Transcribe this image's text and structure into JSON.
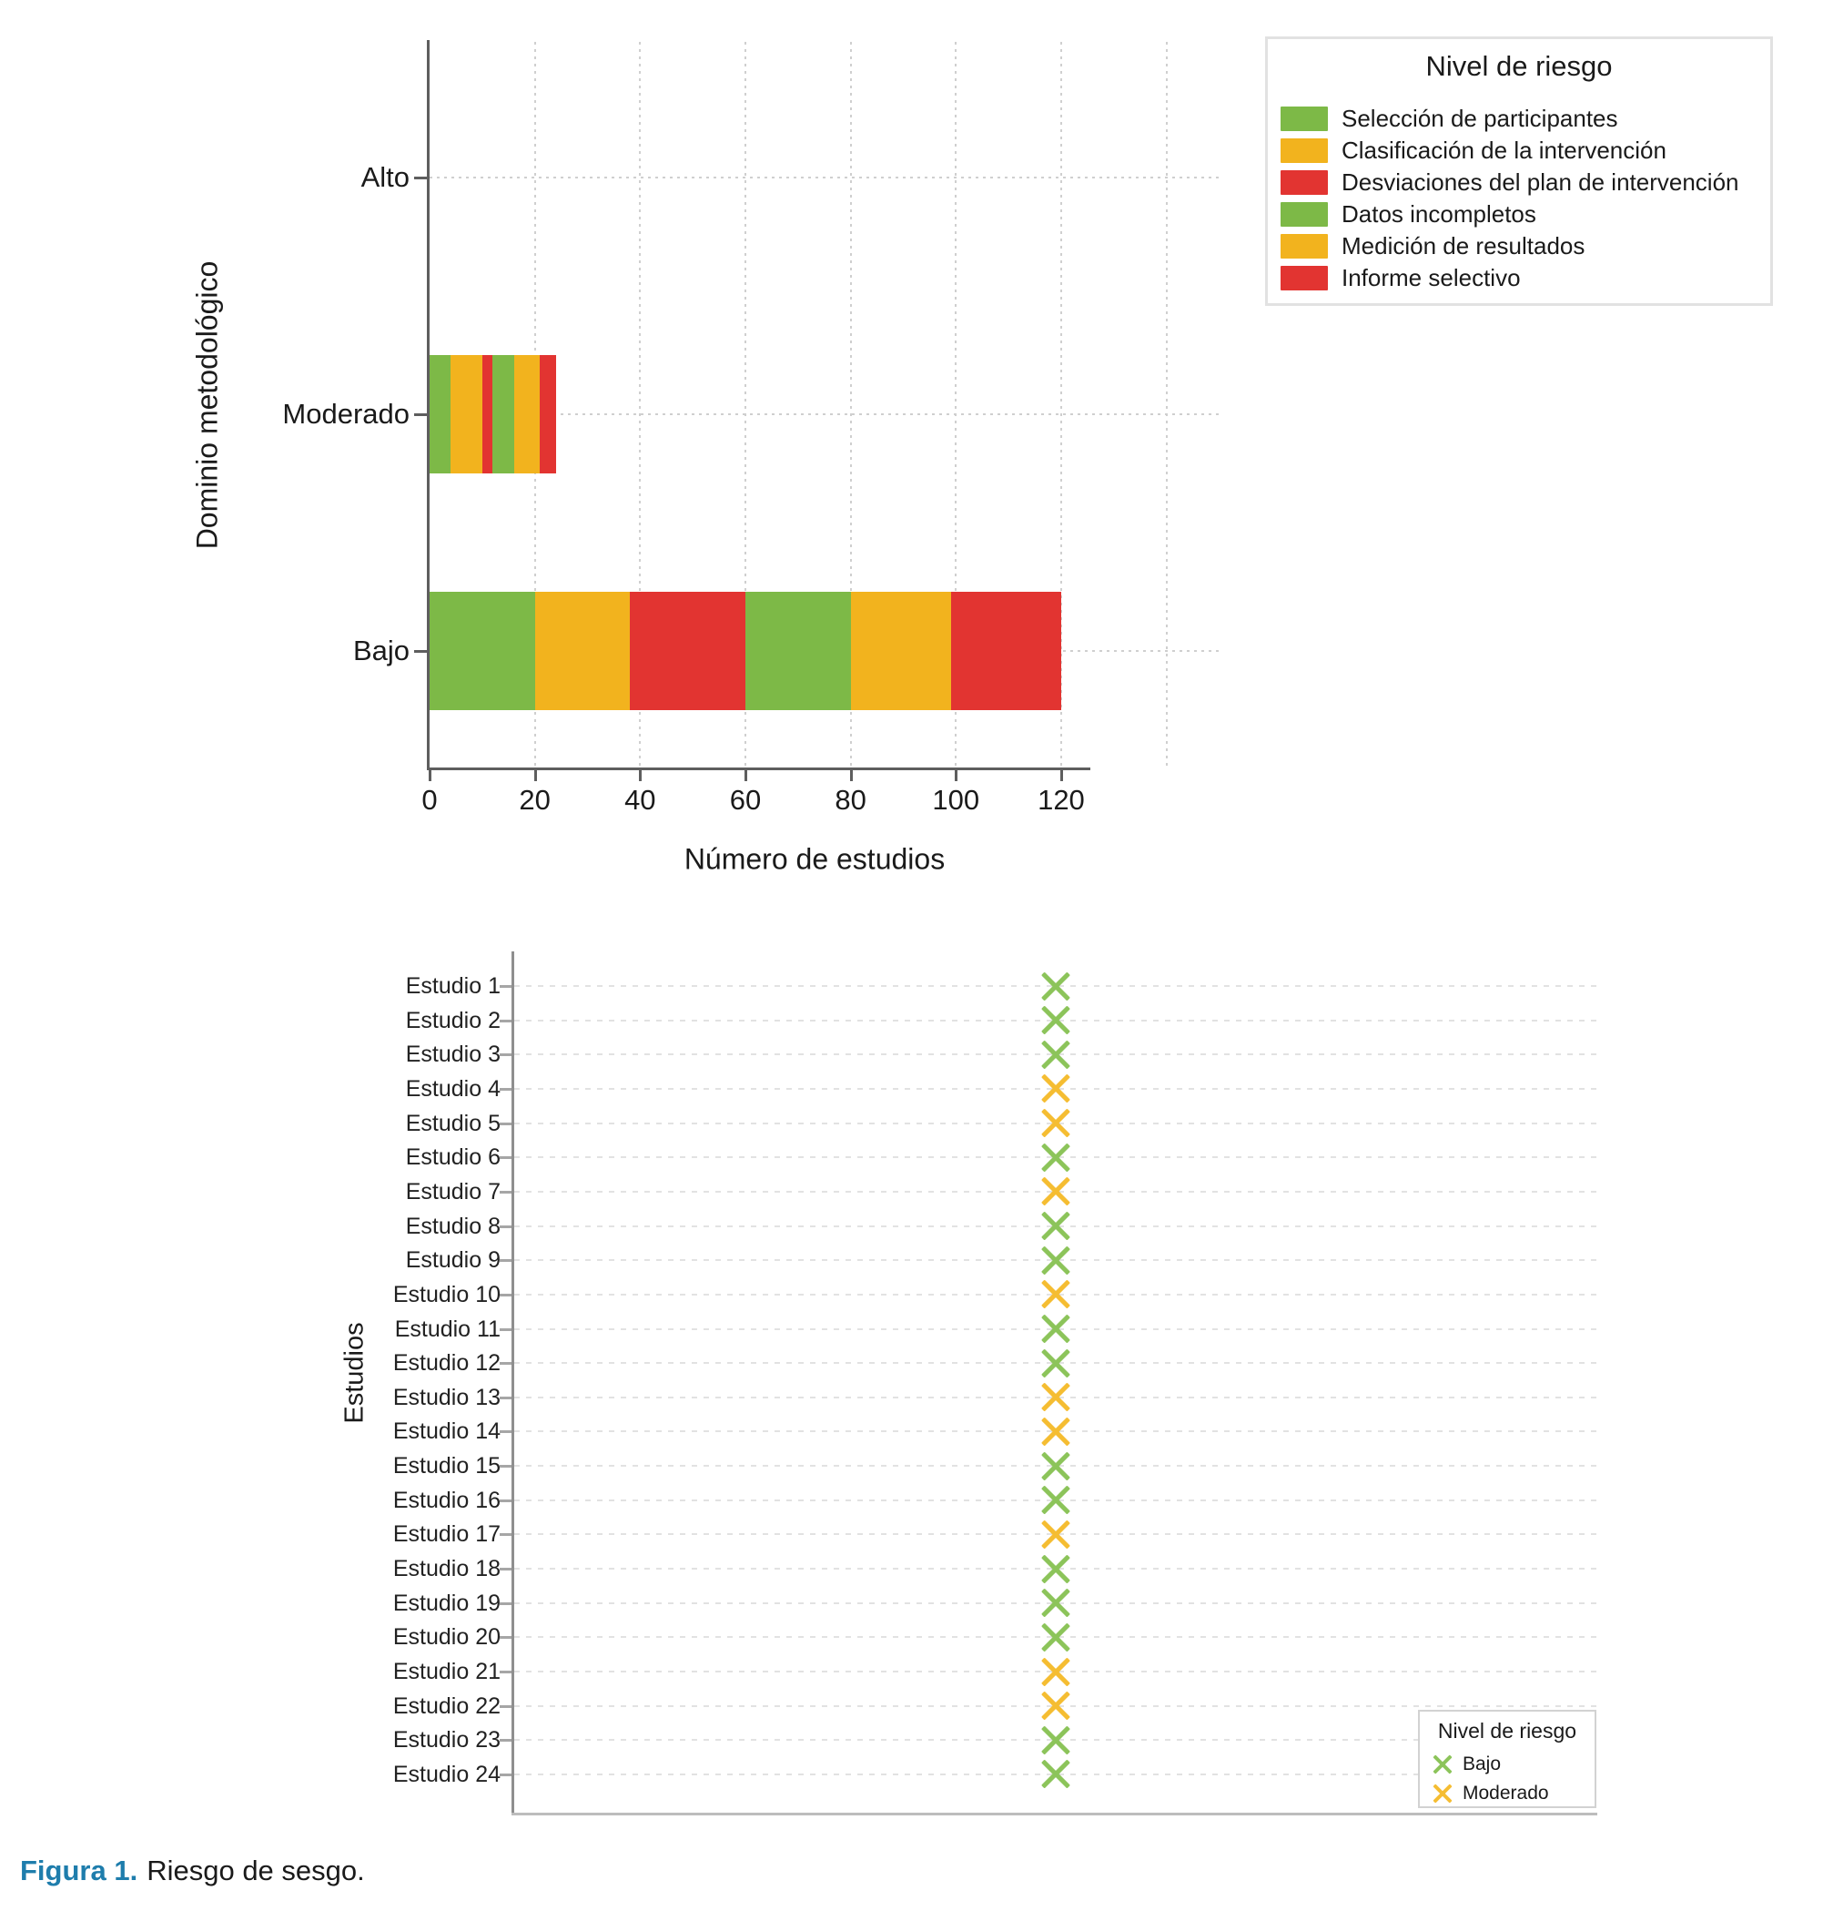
{
  "caption": {
    "label": "Figura 1.",
    "text": "Riesgo de sesgo."
  },
  "chart_data": [
    {
      "type": "bar",
      "orientation": "horizontal",
      "stacked": true,
      "xlabel": "Número de estudios",
      "ylabel": "Dominio metodológico",
      "categories": [
        "Alto",
        "Moderado",
        "Bajo"
      ],
      "x_ticks": [
        0,
        20,
        40,
        60,
        80,
        100,
        120
      ],
      "grid_x": [
        20,
        40,
        60,
        80,
        100,
        120,
        140
      ],
      "xlim": [
        0,
        150
      ],
      "grid": true,
      "legend": {
        "title": "Nivel de riesgo",
        "position": "top-right"
      },
      "series": [
        {
          "name": "Selección de participantes",
          "color": "#7db947",
          "values": [
            0,
            4,
            20
          ]
        },
        {
          "name": "Clasificación de la intervención",
          "color": "#f2b31e",
          "values": [
            0,
            6,
            18
          ]
        },
        {
          "name": "Desviaciones del plan de intervención",
          "color": "#e23431",
          "values": [
            0,
            2,
            22
          ]
        },
        {
          "name": "Datos incompletos",
          "color": "#7db947",
          "values": [
            0,
            4,
            20
          ]
        },
        {
          "name": "Medición de resultados",
          "color": "#f2b31e",
          "values": [
            0,
            5,
            19
          ]
        },
        {
          "name": "Informe selectivo",
          "color": "#e23431",
          "values": [
            0,
            3,
            21
          ]
        }
      ]
    },
    {
      "type": "scatter",
      "marker": "x",
      "ylabel": "Estudios",
      "x_fraction": 0.5,
      "grid": true,
      "legend": {
        "title": "Nivel de riesgo",
        "position": "bottom-right",
        "items": [
          {
            "label": "Bajo",
            "color": "#8cc45a"
          },
          {
            "label": "Moderado",
            "color": "#f5bd32"
          }
        ]
      },
      "studies": [
        {
          "label": "Estudio 1",
          "risk": "Bajo"
        },
        {
          "label": "Estudio 2",
          "risk": "Bajo"
        },
        {
          "label": "Estudio 3",
          "risk": "Bajo"
        },
        {
          "label": "Estudio 4",
          "risk": "Moderado"
        },
        {
          "label": "Estudio 5",
          "risk": "Moderado"
        },
        {
          "label": "Estudio 6",
          "risk": "Bajo"
        },
        {
          "label": "Estudio 7",
          "risk": "Moderado"
        },
        {
          "label": "Estudio 8",
          "risk": "Bajo"
        },
        {
          "label": "Estudio 9",
          "risk": "Bajo"
        },
        {
          "label": "Estudio 10",
          "risk": "Moderado"
        },
        {
          "label": "Estudio 11",
          "risk": "Bajo"
        },
        {
          "label": "Estudio 12",
          "risk": "Bajo"
        },
        {
          "label": "Estudio 13",
          "risk": "Moderado"
        },
        {
          "label": "Estudio 14",
          "risk": "Moderado"
        },
        {
          "label": "Estudio 15",
          "risk": "Bajo"
        },
        {
          "label": "Estudio 16",
          "risk": "Bajo"
        },
        {
          "label": "Estudio 17",
          "risk": "Moderado"
        },
        {
          "label": "Estudio 18",
          "risk": "Bajo"
        },
        {
          "label": "Estudio 19",
          "risk": "Bajo"
        },
        {
          "label": "Estudio 20",
          "risk": "Bajo"
        },
        {
          "label": "Estudio 21",
          "risk": "Moderado"
        },
        {
          "label": "Estudio 22",
          "risk": "Moderado"
        },
        {
          "label": "Estudio 23",
          "risk": "Bajo"
        },
        {
          "label": "Estudio 24",
          "risk": "Bajo"
        }
      ]
    }
  ]
}
